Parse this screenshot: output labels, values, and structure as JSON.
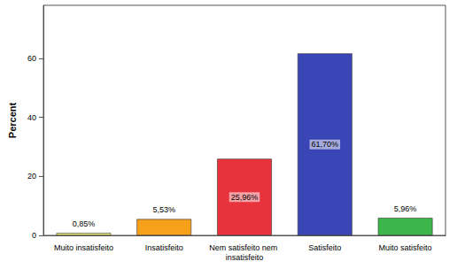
{
  "chart_data": {
    "type": "bar",
    "y_label": "Percent",
    "categories": [
      "Muito insatisfeito",
      "Insatisfeito",
      "Nem satisfeito nem insatisfeito",
      "Satisfeito",
      "Muito satisfeito"
    ],
    "values": [
      0.85,
      5.53,
      25.96,
      61.7,
      5.96
    ],
    "value_labels": [
      "0,85%",
      "5,53%",
      "25,96%",
      "61,70%",
      "5,96%"
    ],
    "colors": [
      "#eeee7a",
      "#f7a11a",
      "#e8323c",
      "#3a46b5",
      "#3cb54a"
    ],
    "ylim": [
      0,
      78
    ],
    "yticks": [
      0,
      20,
      40,
      60
    ],
    "grid": false,
    "data_labels": true
  }
}
